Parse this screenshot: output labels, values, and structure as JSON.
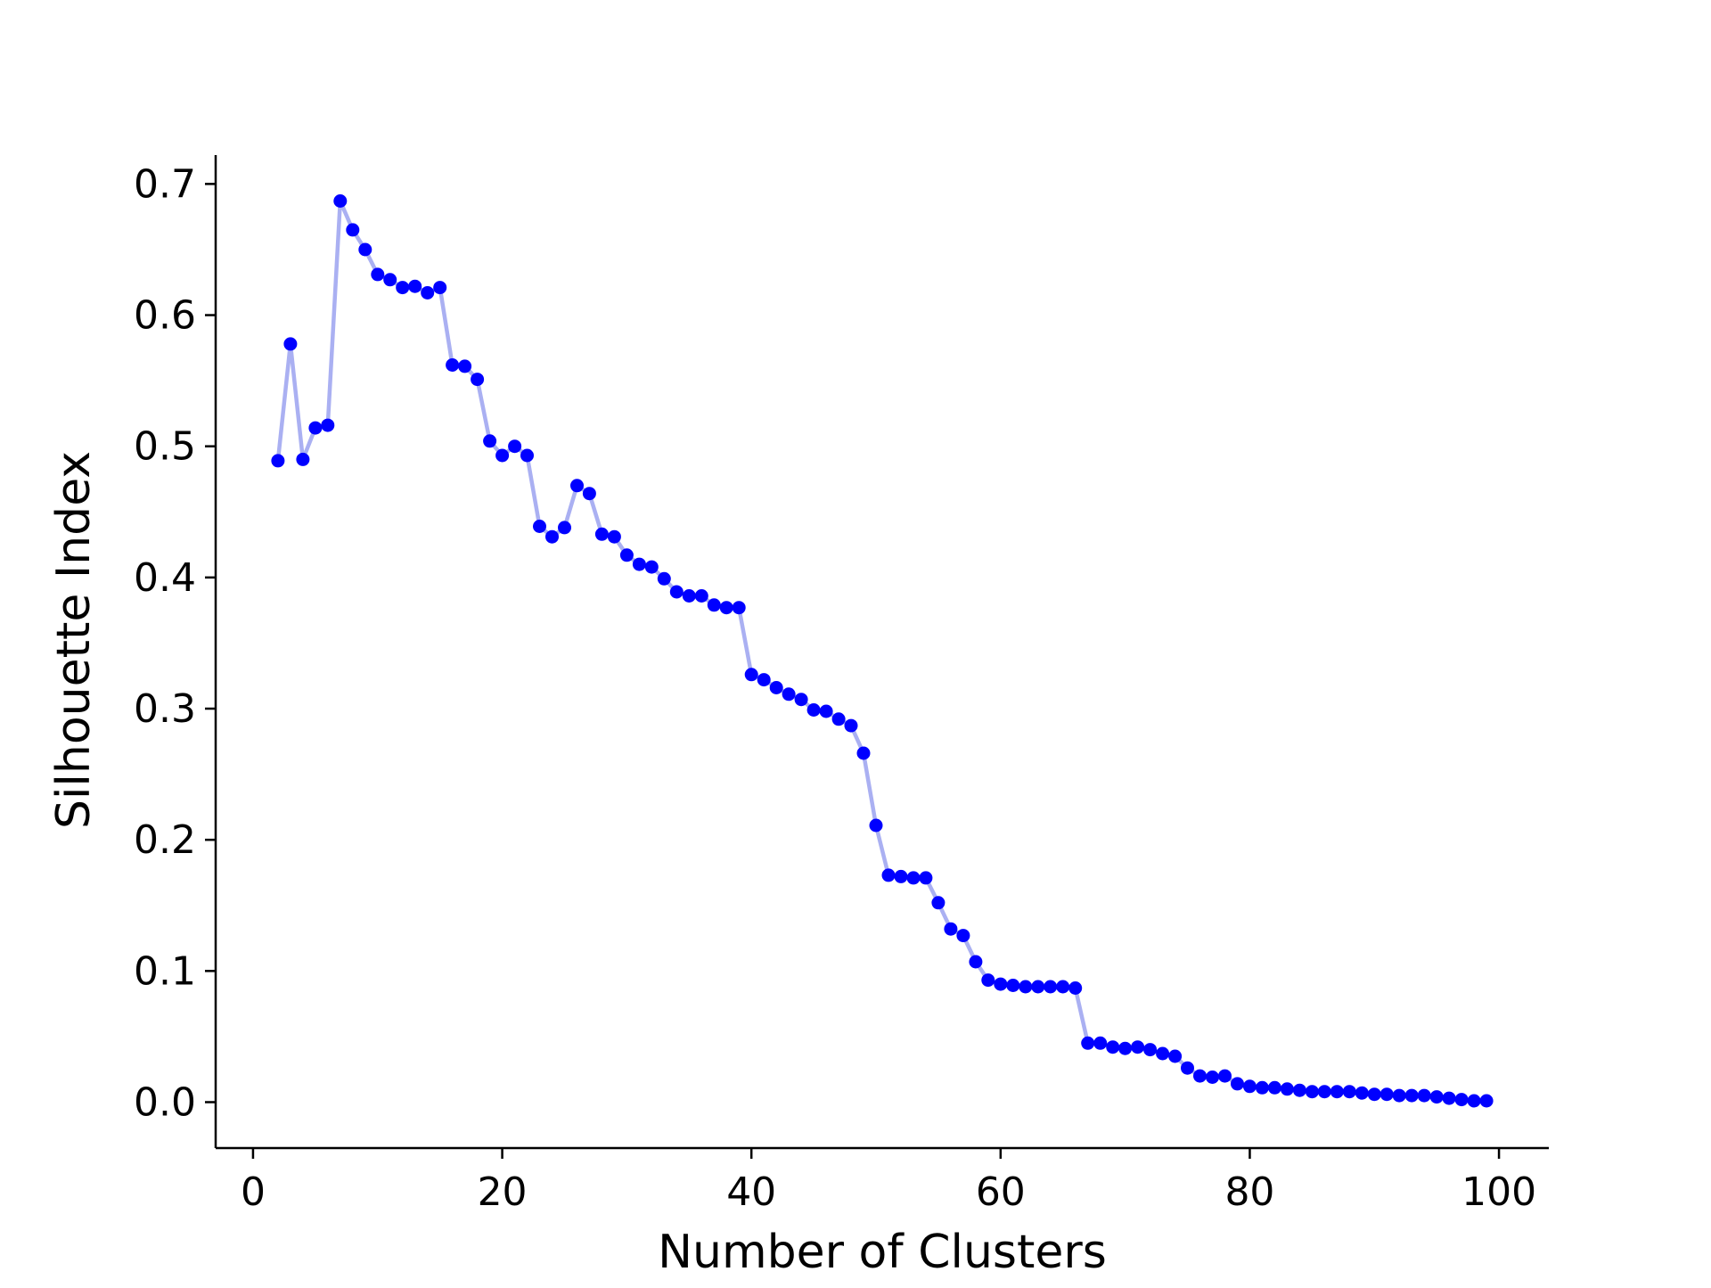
{
  "chart_data": {
    "type": "line",
    "title": "",
    "xlabel": "Number of Clusters",
    "ylabel": "Silhouette Index",
    "xlim": [
      -3,
      104
    ],
    "ylim": [
      -0.035,
      0.722
    ],
    "xticks": [
      0,
      20,
      40,
      60,
      80,
      100
    ],
    "yticks": [
      0.0,
      0.1,
      0.2,
      0.3,
      0.4,
      0.5,
      0.6,
      0.7
    ],
    "xtick_labels": [
      "0",
      "20",
      "40",
      "60",
      "80",
      "100"
    ],
    "ytick_labels": [
      "0.0",
      "0.1",
      "0.2",
      "0.3",
      "0.4",
      "0.5",
      "0.6",
      "0.7"
    ],
    "grid": false,
    "legend": "none",
    "colors": {
      "marker": "#0000ff",
      "line": "#aab0f2",
      "axis": "#000000"
    },
    "x": [
      2,
      3,
      4,
      5,
      6,
      7,
      8,
      9,
      10,
      11,
      12,
      13,
      14,
      15,
      16,
      17,
      18,
      19,
      20,
      21,
      22,
      23,
      24,
      25,
      26,
      27,
      28,
      29,
      30,
      31,
      32,
      33,
      34,
      35,
      36,
      37,
      38,
      39,
      40,
      41,
      42,
      43,
      44,
      45,
      46,
      47,
      48,
      49,
      50,
      51,
      52,
      53,
      54,
      55,
      56,
      57,
      58,
      59,
      60,
      61,
      62,
      63,
      64,
      65,
      66,
      67,
      68,
      69,
      70,
      71,
      72,
      73,
      74,
      75,
      76,
      77,
      78,
      79,
      80,
      81,
      82,
      83,
      84,
      85,
      86,
      87,
      88,
      89,
      90,
      91,
      92,
      93,
      94,
      95,
      96,
      97,
      98,
      99
    ],
    "y": [
      0.489,
      0.578,
      0.49,
      0.514,
      0.516,
      0.687,
      0.665,
      0.65,
      0.631,
      0.627,
      0.621,
      0.622,
      0.617,
      0.621,
      0.562,
      0.561,
      0.551,
      0.504,
      0.493,
      0.5,
      0.493,
      0.439,
      0.431,
      0.438,
      0.47,
      0.464,
      0.433,
      0.431,
      0.417,
      0.41,
      0.408,
      0.399,
      0.389,
      0.386,
      0.386,
      0.379,
      0.377,
      0.377,
      0.326,
      0.322,
      0.316,
      0.311,
      0.307,
      0.299,
      0.298,
      0.292,
      0.287,
      0.266,
      0.211,
      0.173,
      0.172,
      0.171,
      0.171,
      0.152,
      0.132,
      0.127,
      0.107,
      0.093,
      0.09,
      0.089,
      0.088,
      0.088,
      0.088,
      0.088,
      0.087,
      0.045,
      0.045,
      0.042,
      0.041,
      0.042,
      0.04,
      0.037,
      0.035,
      0.026,
      0.02,
      0.019,
      0.02,
      0.014,
      0.012,
      0.011,
      0.011,
      0.01,
      0.009,
      0.008,
      0.008,
      0.008,
      0.008,
      0.007,
      0.006,
      0.006,
      0.005,
      0.005,
      0.005,
      0.004,
      0.003,
      0.002,
      0.001,
      0.001
    ]
  }
}
